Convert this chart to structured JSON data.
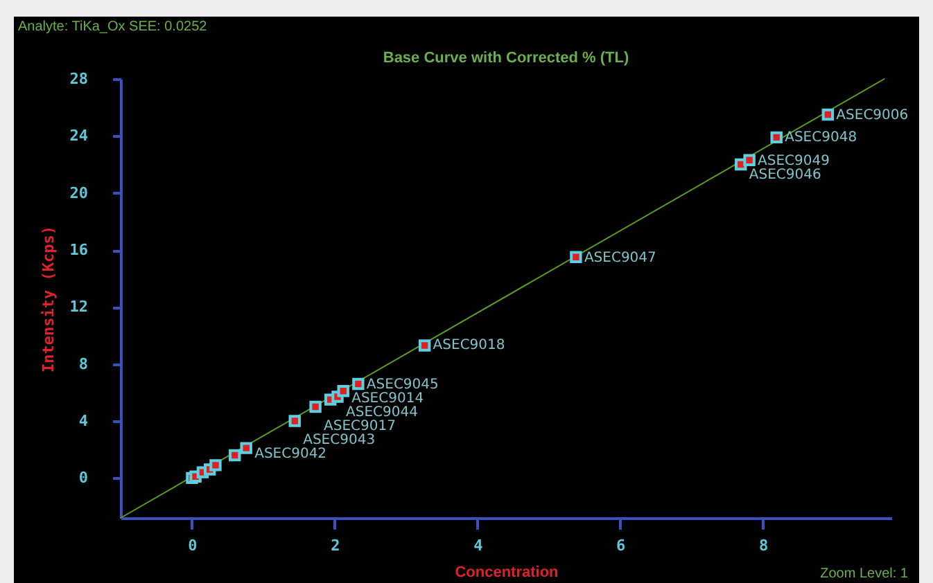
{
  "chart_data": {
    "type": "scatter",
    "title": "Base Curve with Corrected % (TL)",
    "xlabel": "Concentration",
    "ylabel": "Intensity   (Kcps)",
    "xlim": [
      -1,
      9.8
    ],
    "ylim": [
      -2.8,
      28
    ],
    "xticks": [
      0,
      2,
      4,
      6,
      8
    ],
    "yticks": [
      0,
      4,
      8,
      12,
      16,
      20,
      24,
      28
    ],
    "series": [
      {
        "color": "#5ccfe0",
        "marker": "square",
        "x": [
          0,
          0.05,
          0.15,
          0.25,
          0.33,
          0.6,
          0.76,
          1.44,
          1.73,
          1.94,
          2.04,
          2.12,
          2.33,
          3.26,
          5.38,
          7.69,
          7.81,
          8.19,
          8.91
        ],
        "values": [
          0,
          0.1,
          0.4,
          0.6,
          0.9,
          1.6,
          2.1,
          4.0,
          5.0,
          5.5,
          5.7,
          6.1,
          6.6,
          9.3,
          15.5,
          22.0,
          22.3,
          23.9,
          25.5
        ]
      },
      {
        "type": "line",
        "color": "#5a9e1e",
        "x": [
          -1,
          9.7
        ],
        "values": [
          -2.8,
          28
        ]
      }
    ],
    "annotations": [
      "Analyte: TiKa_Ox SEE: 0.0252",
      "Zoom Level: 1",
      {
        "text": "ASEC9006",
        "x": 8.91,
        "y": 25.46
      },
      {
        "text": "ASEC9048",
        "x": 8.19,
        "y": 23.9
      },
      {
        "text": "ASEC9049",
        "x": 7.81,
        "y": 22.25
      },
      {
        "text": "ASEC9046",
        "x": 7.69,
        "y": 21.96
      },
      {
        "text": "ASEC9047",
        "x": 5.38,
        "y": 15.45
      },
      {
        "text": "ASEC9018",
        "x": 3.26,
        "y": 9.33
      },
      {
        "text": "ASEC9045",
        "x": 2.33,
        "y": 6.6
      },
      {
        "text": "ASEC9014",
        "x": 2.12,
        "y": 6.1
      },
      {
        "text": "ASEC9044",
        "x": 2.04,
        "y": 5.7
      },
      {
        "text": "ASEC9017",
        "x": 1.73,
        "y": 4.95
      },
      {
        "text": "ASEC9043",
        "x": 1.44,
        "y": 4.0
      },
      {
        "text": "ASEC9042",
        "x": 0.76,
        "y": 2.05
      }
    ]
  }
}
